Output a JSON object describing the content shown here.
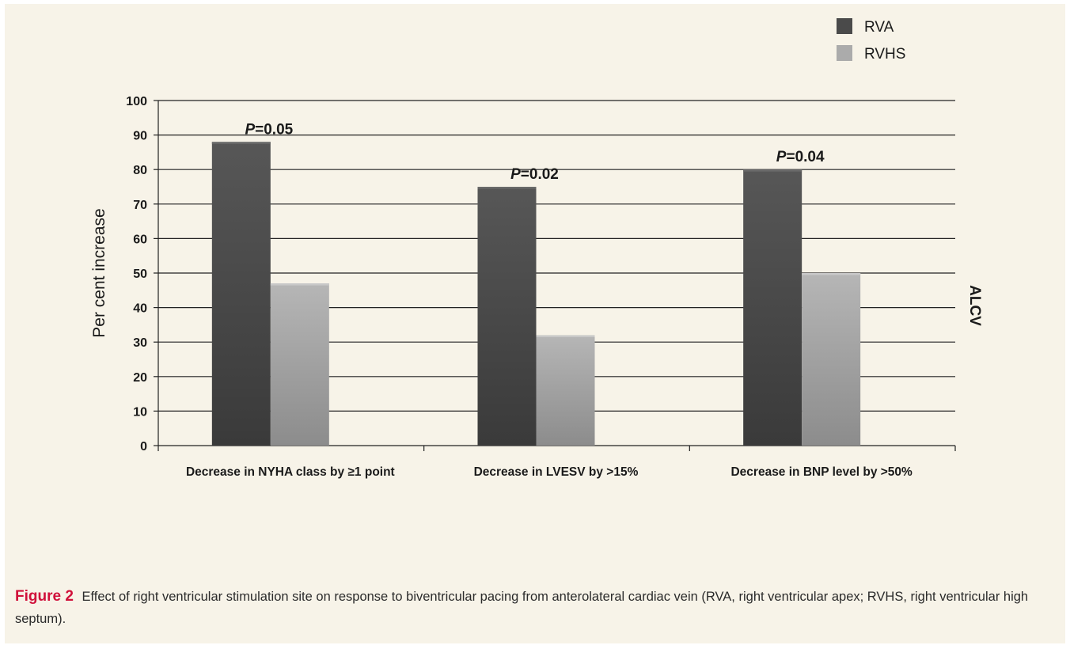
{
  "caption": {
    "label": "Figure 2",
    "text": "Effect of right ventricular stimulation site on response to biventricular pacing from anterolateral cardiac vein (RVA, right ventricular apex; RVHS, right ventricular high septum)."
  },
  "colors": {
    "background": "#f7f3e8",
    "rva": "#4a4a4a",
    "rvhs": "#a9a9a9",
    "caption_label": "#d0103a"
  },
  "chart_data": {
    "type": "bar",
    "title": "",
    "xlabel": "",
    "ylabel": "Per cent increase",
    "side_label": "ALCV",
    "ylim": [
      0,
      100
    ],
    "yticks": [
      0,
      10,
      20,
      30,
      40,
      50,
      60,
      70,
      80,
      90,
      100
    ],
    "grid": true,
    "legend_position": "top-right",
    "categories": [
      "Decrease in NYHA class by ≥1 point",
      "Decrease in LVESV by >15%",
      "Decrease in BNP level by >50%"
    ],
    "series": [
      {
        "name": "RVA",
        "values": [
          88,
          75,
          80
        ]
      },
      {
        "name": "RVHS",
        "values": [
          47,
          32,
          50
        ]
      }
    ],
    "annotations": [
      {
        "category": 0,
        "series": 0,
        "p_label": "P",
        "p_value": "=0.05"
      },
      {
        "category": 1,
        "series": 0,
        "p_label": "P",
        "p_value": "=0.02"
      },
      {
        "category": 2,
        "series": 0,
        "p_label": "P",
        "p_value": "=0.04"
      }
    ]
  }
}
